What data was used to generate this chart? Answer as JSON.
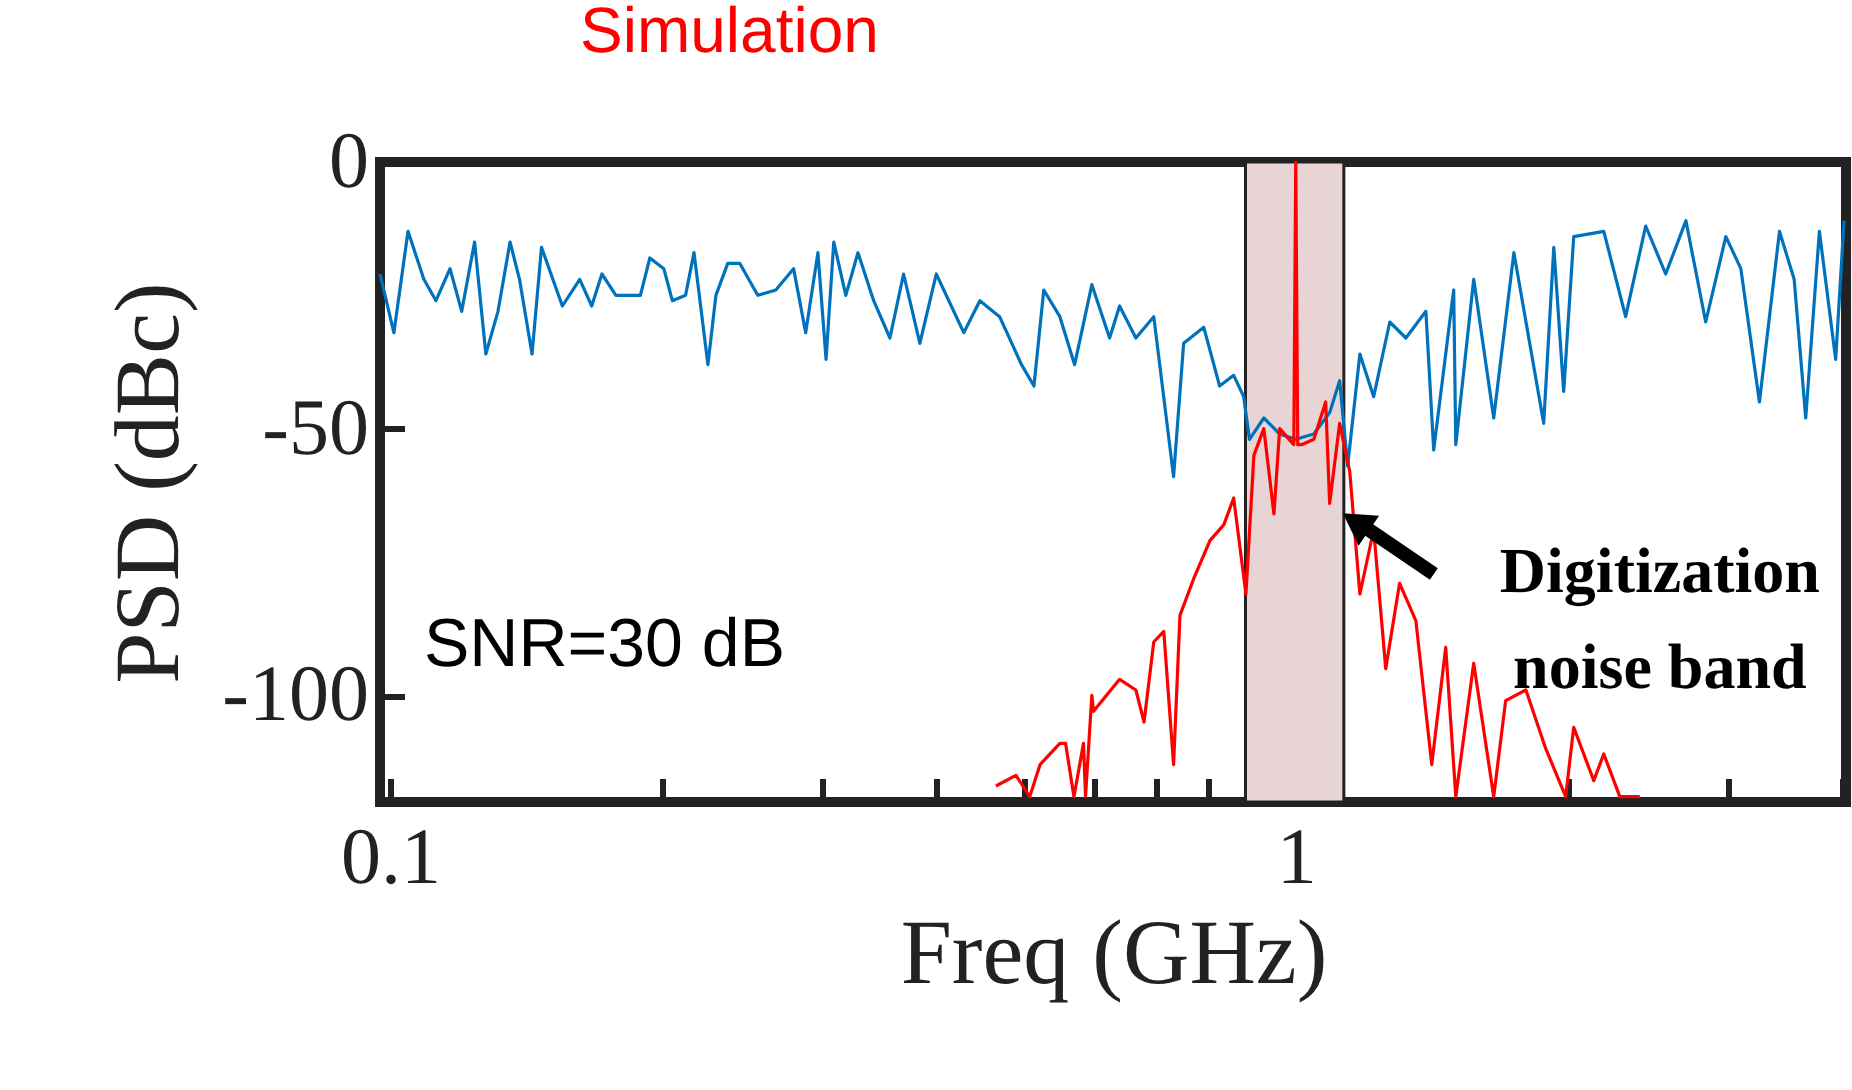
{
  "chart_data": {
    "type": "line",
    "title": "Simulation",
    "xlabel": "Freq (GHz)",
    "ylabel": "PSD (dBc)",
    "log": "x",
    "xlim": [
      0.0975,
      4.05
    ],
    "ylim": [
      -120,
      0
    ],
    "xticks": [
      0.1,
      {
        "value": 0.2,
        "label": null
      },
      {
        "value": 0.3,
        "label": null
      },
      {
        "value": 0.4,
        "label": null
      },
      {
        "value": 0.5,
        "label": null
      },
      {
        "value": 0.6,
        "label": null
      },
      {
        "value": 0.7,
        "label": null
      },
      {
        "value": 0.8,
        "label": null
      },
      {
        "value": 0.9,
        "label": null
      },
      1,
      {
        "value": 2,
        "label": null
      },
      {
        "value": 3,
        "label": null
      },
      {
        "value": 4,
        "label": null
      }
    ],
    "yticks": [
      -100,
      -50,
      0
    ],
    "grid": false,
    "series": [
      {
        "color": "#0072bd",
        "x": [
          0.0975,
          0.101,
          0.1047,
          0.109,
          0.1124,
          0.1165,
          0.12,
          0.124,
          0.1276,
          0.1316,
          0.1357,
          0.139,
          0.1435,
          0.147,
          0.155,
          0.162,
          0.167,
          0.1714,
          0.1776,
          0.189,
          0.1936,
          0.2006,
          0.205,
          0.212,
          0.2166,
          0.2244,
          0.229,
          0.236,
          0.2433,
          0.2547,
          0.2667,
          0.279,
          0.2877,
          0.2968,
          0.303,
          0.309,
          0.3186,
          0.3286,
          0.342,
          0.3564,
          0.369,
          0.3846,
          0.401,
          0.43,
          0.448,
          0.471,
          0.498,
          0.514,
          0.527,
          0.549,
          0.57,
          0.5955,
          0.623,
          0.639,
          0.666,
          0.697,
          0.733,
          0.752,
          0.7915,
          0.824,
          0.854,
          0.876,
          0.889,
          0.922,
          0.96,
          1,
          1.047,
          1.09,
          1.118,
          1.141,
          1.177,
          1.219,
          1.27,
          1.323,
          1.392,
          1.42,
          1.494,
          1.502,
          1.572,
          1.654,
          1.741,
          1.878,
          1.927,
          1.976,
          2.027,
          2.188,
          2.313,
          2.434,
          2.561,
          2.696,
          2.835,
          2.984,
          3.1,
          3.25,
          3.42,
          3.55,
          3.656,
          3.785,
          3.945,
          4.03
        ],
        "values": [
          -21,
          -32,
          -13,
          -22,
          -26,
          -20,
          -28,
          -15,
          -36,
          -28,
          -15,
          -22,
          -36,
          -16,
          -27,
          -22,
          -27,
          -21,
          -25,
          -25,
          -18,
          -20,
          -26,
          -25,
          -17,
          -38,
          -25,
          -19,
          -19,
          -25,
          -24,
          -20,
          -32,
          -17,
          -37,
          -15,
          -25,
          -17,
          -26,
          -33,
          -21,
          -34,
          -21,
          -32,
          -26,
          -29,
          -38,
          -42,
          -24,
          -29,
          -38,
          -23,
          -33,
          -27,
          -33,
          -29,
          -59,
          -34,
          -31,
          -42,
          -40,
          -44,
          -52,
          -48,
          -51,
          -52,
          -51,
          -47,
          -41,
          -57,
          -36,
          -44,
          -30,
          -33,
          -28,
          -54,
          -24,
          -53,
          -22,
          -48,
          -17,
          -49,
          -16,
          -43,
          -14,
          -13,
          -29,
          -12,
          -21,
          -11,
          -30,
          -14,
          -20,
          -45,
          -13,
          -22,
          -48,
          -13,
          -37,
          -11
        ]
      },
      {
        "color": "#ff0000",
        "x": [
          0.4666,
          0.491,
          0.5085,
          0.522,
          0.549,
          0.557,
          0.569,
          0.583,
          0.586,
          0.5955,
          0.598,
          0.639,
          0.666,
          0.68,
          0.697,
          0.715,
          0.733,
          0.745,
          0.772,
          0.804,
          0.833,
          0.854,
          0.881,
          0.899,
          0.922,
          0.946,
          0.96,
          0.995,
          1,
          1.005,
          1.015,
          1.047,
          1.079,
          1.09,
          1.118,
          1.147,
          1.177,
          1.219,
          1.257,
          1.302,
          1.357,
          1.413,
          1.464,
          1.502,
          1.572,
          1.654,
          1.705,
          1.795,
          1.888,
          1.986,
          2.027,
          2.133,
          2.188,
          2.279,
          2.398
        ],
        "values": [
          -117,
          -115,
          -119,
          -113,
          -109,
          -109,
          -119,
          -109,
          -119,
          -100,
          -103,
          -97,
          -99,
          -105,
          -90,
          -88,
          -113,
          -85,
          -78,
          -71,
          -68,
          -63,
          -81,
          -55,
          -50,
          -66,
          -50,
          -53,
          0,
          -53,
          -53,
          -52,
          -45,
          -64,
          -49,
          -58,
          -81,
          -69,
          -95,
          -79,
          -86,
          -113,
          -91,
          -119,
          -94,
          -119,
          -101,
          -99,
          -110,
          -119,
          -106,
          -116,
          -111,
          -119,
          -119
        ]
      }
    ],
    "bands": [
      {
        "axis": "x",
        "from": 0.88,
        "to": 1.13,
        "label": "Digitization noise band",
        "color": "#e8d4d4"
      }
    ],
    "annotations": [
      "SNR=30 dB"
    ]
  }
}
